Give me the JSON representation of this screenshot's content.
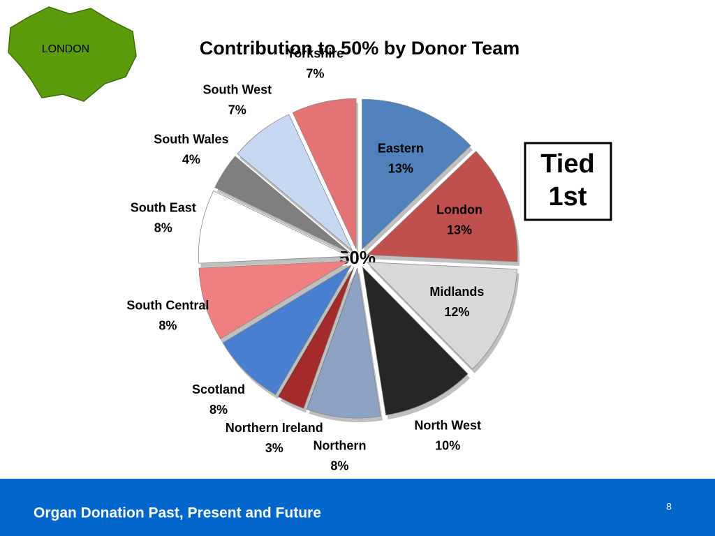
{
  "logo": {
    "label": "LONDON"
  },
  "chart_data": {
    "type": "pie",
    "title": "Contribution to 50% by Donor Team",
    "center_label": "50%",
    "categories": [
      "Eastern",
      "London",
      "Midlands",
      "North West",
      "Northern",
      "Northern Ireland",
      "Scotland",
      "South Central",
      "South East",
      "South Wales",
      "South West",
      "Yorkshire"
    ],
    "values": [
      13,
      13,
      12,
      10,
      8,
      3,
      8,
      8,
      8,
      4,
      7,
      7
    ],
    "value_labels": [
      "13%",
      "13%",
      "12%",
      "10%",
      "8%",
      "3%",
      "8%",
      "8%",
      "8%",
      "4%",
      "7%",
      "7%"
    ],
    "colors": [
      "#4f81bd",
      "#c0504d",
      "#d9d9d9",
      "#262626",
      "#8ea2c6",
      "#a52a2a",
      "#4a7fd0",
      "#f08080",
      "#ffffff",
      "#7f7f7f",
      "#c6d9f1",
      "#e57373"
    ]
  },
  "callout": {
    "lines": [
      "Tied",
      "1st"
    ]
  },
  "footer": {
    "text": "Organ Donation Past, Present and Future",
    "page_number": 8
  }
}
